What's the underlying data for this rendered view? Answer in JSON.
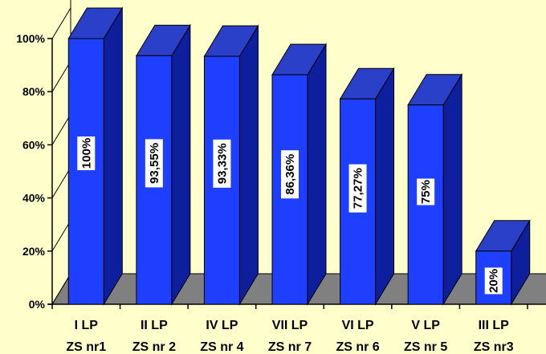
{
  "chart_data": {
    "type": "bar",
    "style": "3d-column",
    "categories": [
      [
        "I LP",
        "ZS nr1"
      ],
      [
        "II LP",
        "ZS nr 2"
      ],
      [
        "IV LP",
        "ZS nr 4"
      ],
      [
        "VII LP",
        "ZS nr 7"
      ],
      [
        "VI LP",
        "ZS nr 6"
      ],
      [
        "V LP",
        "ZS nr 5"
      ],
      [
        "III LP",
        "ZS nr3"
      ]
    ],
    "values": [
      100,
      93.55,
      93.33,
      86.36,
      77.27,
      75,
      20
    ],
    "data_labels": [
      "100%",
      "93,55%",
      "93,33%",
      "86,36%",
      "77,27%",
      "75%",
      "20%"
    ],
    "yticks": [
      "0%",
      "20%",
      "40%",
      "60%",
      "80%",
      "100%"
    ],
    "ylim": [
      0,
      100
    ],
    "title": "",
    "xlabel": "",
    "ylabel": "",
    "grid": false,
    "legend": "none",
    "colors": {
      "background": "#ffffcc",
      "bar_front": "#1f3fff",
      "bar_side": "#0d1f9c",
      "bar_top": "#2a40c8",
      "floor": "#808080",
      "axis": "#000000",
      "label_box": "#ffffff"
    }
  }
}
